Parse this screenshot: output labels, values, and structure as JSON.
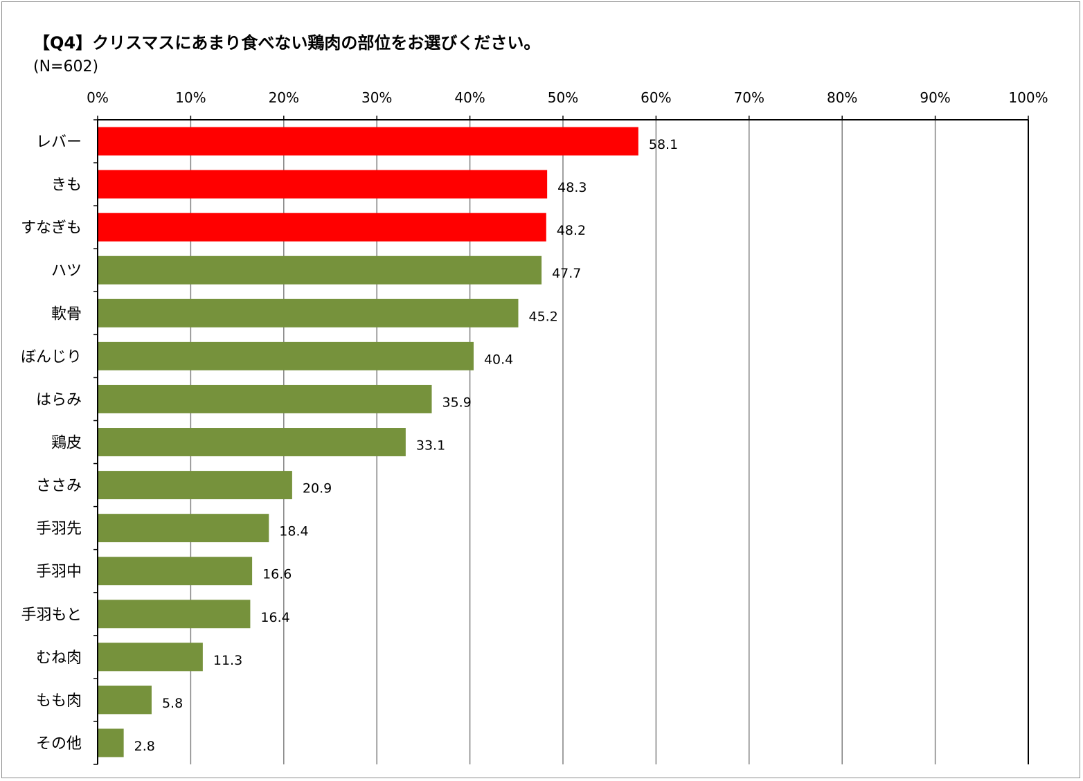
{
  "chart_data": {
    "type": "bar",
    "orientation": "horizontal",
    "title": "【Q4】クリスマスにあまり食べない鶏肉の部位をお選びください。",
    "subtitle": "(N=602)",
    "xlim": [
      0,
      100
    ],
    "x_ticks": [
      "0%",
      "10%",
      "20%",
      "30%",
      "40%",
      "50%",
      "60%",
      "70%",
      "80%",
      "90%",
      "100%"
    ],
    "x_axis_position": "top",
    "grid": true,
    "categories": [
      "レバー",
      "きも",
      "すなぎも",
      "ハツ",
      "軟骨",
      "ぼんじり",
      "はらみ",
      "鶏皮",
      "ささみ",
      "手羽先",
      "手羽中",
      "手羽もと",
      "むね肉",
      "もも肉",
      "その他"
    ],
    "values": [
      58.1,
      48.3,
      48.2,
      47.7,
      45.2,
      40.4,
      35.9,
      33.1,
      20.9,
      18.4,
      16.6,
      16.4,
      11.3,
      5.8,
      2.8
    ],
    "value_labels": [
      "58.1",
      "48.3",
      "48.2",
      "47.7",
      "45.2",
      "40.4",
      "35.9",
      "33.1",
      "20.9",
      "18.4",
      "16.6",
      "16.4",
      "11.3",
      "5.8",
      "2.8"
    ],
    "highlight_count": 3,
    "colors": {
      "highlight": "#ff0000",
      "default": "#76923c",
      "grid": "#808080",
      "axis": "#000000"
    }
  }
}
